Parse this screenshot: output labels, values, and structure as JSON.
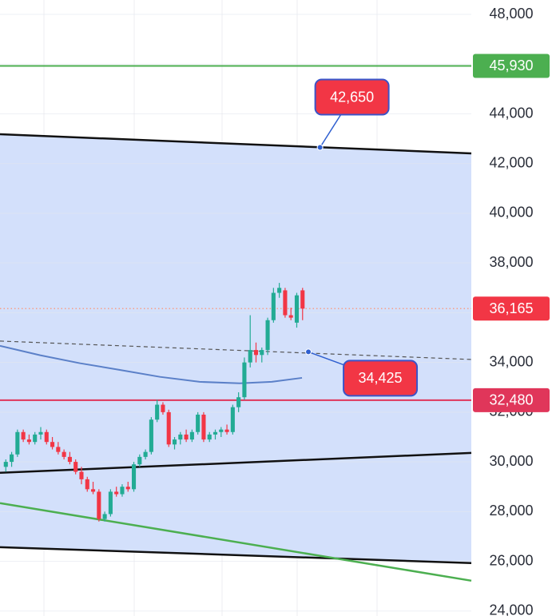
{
  "chart_data": {
    "type": "candlestick",
    "ylim": [
      23800,
      48580
    ],
    "xlim": [
      -1,
      80
    ],
    "yticks": [
      {
        "value": 24000,
        "label": "24,000"
      },
      {
        "value": 26000,
        "label": "26,000"
      },
      {
        "value": 28000,
        "label": "28,000"
      },
      {
        "value": 30000,
        "label": "30,000"
      },
      {
        "value": 32000,
        "label": "32,000"
      },
      {
        "value": 34000,
        "label": "34,000"
      },
      {
        "value": 36000,
        "label": "36,000"
      },
      {
        "value": 38000,
        "label": "38,000"
      },
      {
        "value": 40000,
        "label": "40,000"
      },
      {
        "value": 42000,
        "label": "42,000"
      },
      {
        "value": 44000,
        "label": "44,000"
      },
      {
        "value": 46000,
        "label": "46,000"
      },
      {
        "value": 48000,
        "label": "48,000"
      }
    ],
    "grid": true,
    "up_color": "#22ab94",
    "down_color": "#f23645",
    "open": [
      29800,
      30000,
      30300,
      31200,
      30900,
      30800,
      31100,
      31200,
      30800,
      30600,
      30400,
      30200,
      30000,
      29600,
      29300,
      28900,
      28800,
      27700,
      27900,
      28800,
      28700,
      29000,
      28900,
      29900,
      30200,
      30400,
      31700,
      32300,
      32000,
      30700,
      30900,
      31100,
      30900,
      31200,
      31900,
      30900,
      31100,
      31200,
      31300,
      31200,
      32200,
      32600,
      34000,
      34500,
      34300,
      34500,
      35700,
      36800,
      36900,
      35900,
      35600,
      36900
    ],
    "high": [
      30100,
      30400,
      31300,
      31300,
      31100,
      31200,
      31400,
      31300,
      31000,
      30800,
      30500,
      30400,
      30100,
      29800,
      29400,
      29200,
      28900,
      28000,
      28900,
      29000,
      29100,
      29200,
      30000,
      30300,
      30500,
      31800,
      32500,
      32400,
      32100,
      31000,
      31200,
      31300,
      31300,
      32000,
      32000,
      31200,
      31300,
      31400,
      31500,
      32300,
      32800,
      34200,
      35900,
      34800,
      34600,
      35800,
      37000,
      37200,
      37000,
      36200,
      36800,
      37000
    ],
    "low": [
      29600,
      29800,
      30200,
      30800,
      30700,
      30700,
      30900,
      30700,
      30500,
      30300,
      30100,
      29900,
      29500,
      29100,
      28800,
      28700,
      27600,
      27600,
      27800,
      28600,
      28600,
      28800,
      28800,
      29800,
      30100,
      30300,
      31600,
      31900,
      30600,
      30500,
      30700,
      30800,
      30800,
      31100,
      30800,
      30800,
      30900,
      31000,
      31100,
      31100,
      32000,
      32500,
      33800,
      34000,
      34000,
      34300,
      35600,
      36600,
      35800,
      35700,
      35400,
      35700
    ],
    "close": [
      30000,
      30300,
      31200,
      30900,
      30800,
      31100,
      31200,
      30800,
      30600,
      30400,
      30200,
      30000,
      29600,
      29300,
      28900,
      28800,
      27700,
      27900,
      28800,
      28700,
      29000,
      28900,
      29900,
      30200,
      30400,
      31700,
      32300,
      32000,
      30700,
      30900,
      31100,
      30900,
      31200,
      31900,
      30900,
      31100,
      31200,
      31300,
      31200,
      32200,
      32600,
      34000,
      34500,
      34300,
      34500,
      35700,
      36800,
      37000,
      35900,
      35800,
      36700,
      36165
    ],
    "channel": {
      "upper": {
        "x": [
          -1,
          80
        ],
        "y": [
          43180,
          42410
        ]
      },
      "lower": {
        "x": [
          -1,
          80
        ],
        "y": [
          26570,
          25930
        ]
      },
      "fill": "#d3e0fb",
      "color": "#111111"
    },
    "trend_lines": [
      {
        "x": [
          -1,
          80
        ],
        "y": [
          29560,
          30360
        ],
        "color": "#111111",
        "style": "solid"
      },
      {
        "x": [
          -1,
          80
        ],
        "y": [
          28340,
          25220
        ],
        "color": "#4caf50",
        "style": "solid"
      },
      {
        "x": [
          -1,
          80
        ],
        "y": [
          34860,
          34120
        ],
        "color": "#555555",
        "style": "dashed"
      }
    ],
    "moving_average": {
      "x": [
        -1,
        5.9,
        12.7,
        19.6,
        26.5,
        33.3,
        40.2,
        45.7,
        50.9
      ],
      "y": [
        34670,
        34290,
        33970,
        33700,
        33420,
        33220,
        33160,
        33220,
        33380
      ],
      "color": "#5b80c8"
    },
    "price_lines": [
      {
        "value": 45930,
        "label": "45,930",
        "color": "#4caf50",
        "style": "solid"
      },
      {
        "value": 36165,
        "label": "36,165",
        "color": "#f7a08a",
        "style": "dotted"
      },
      {
        "value": 32480,
        "label": "32,480",
        "color": "#e0365a",
        "style": "solid"
      }
    ],
    "callouts": [
      {
        "x": 54,
        "y": 42650,
        "label": "42,650",
        "color": "#f23645"
      },
      {
        "x": 52,
        "y": 34425,
        "label": "34,425",
        "color": "#f23645"
      }
    ]
  }
}
